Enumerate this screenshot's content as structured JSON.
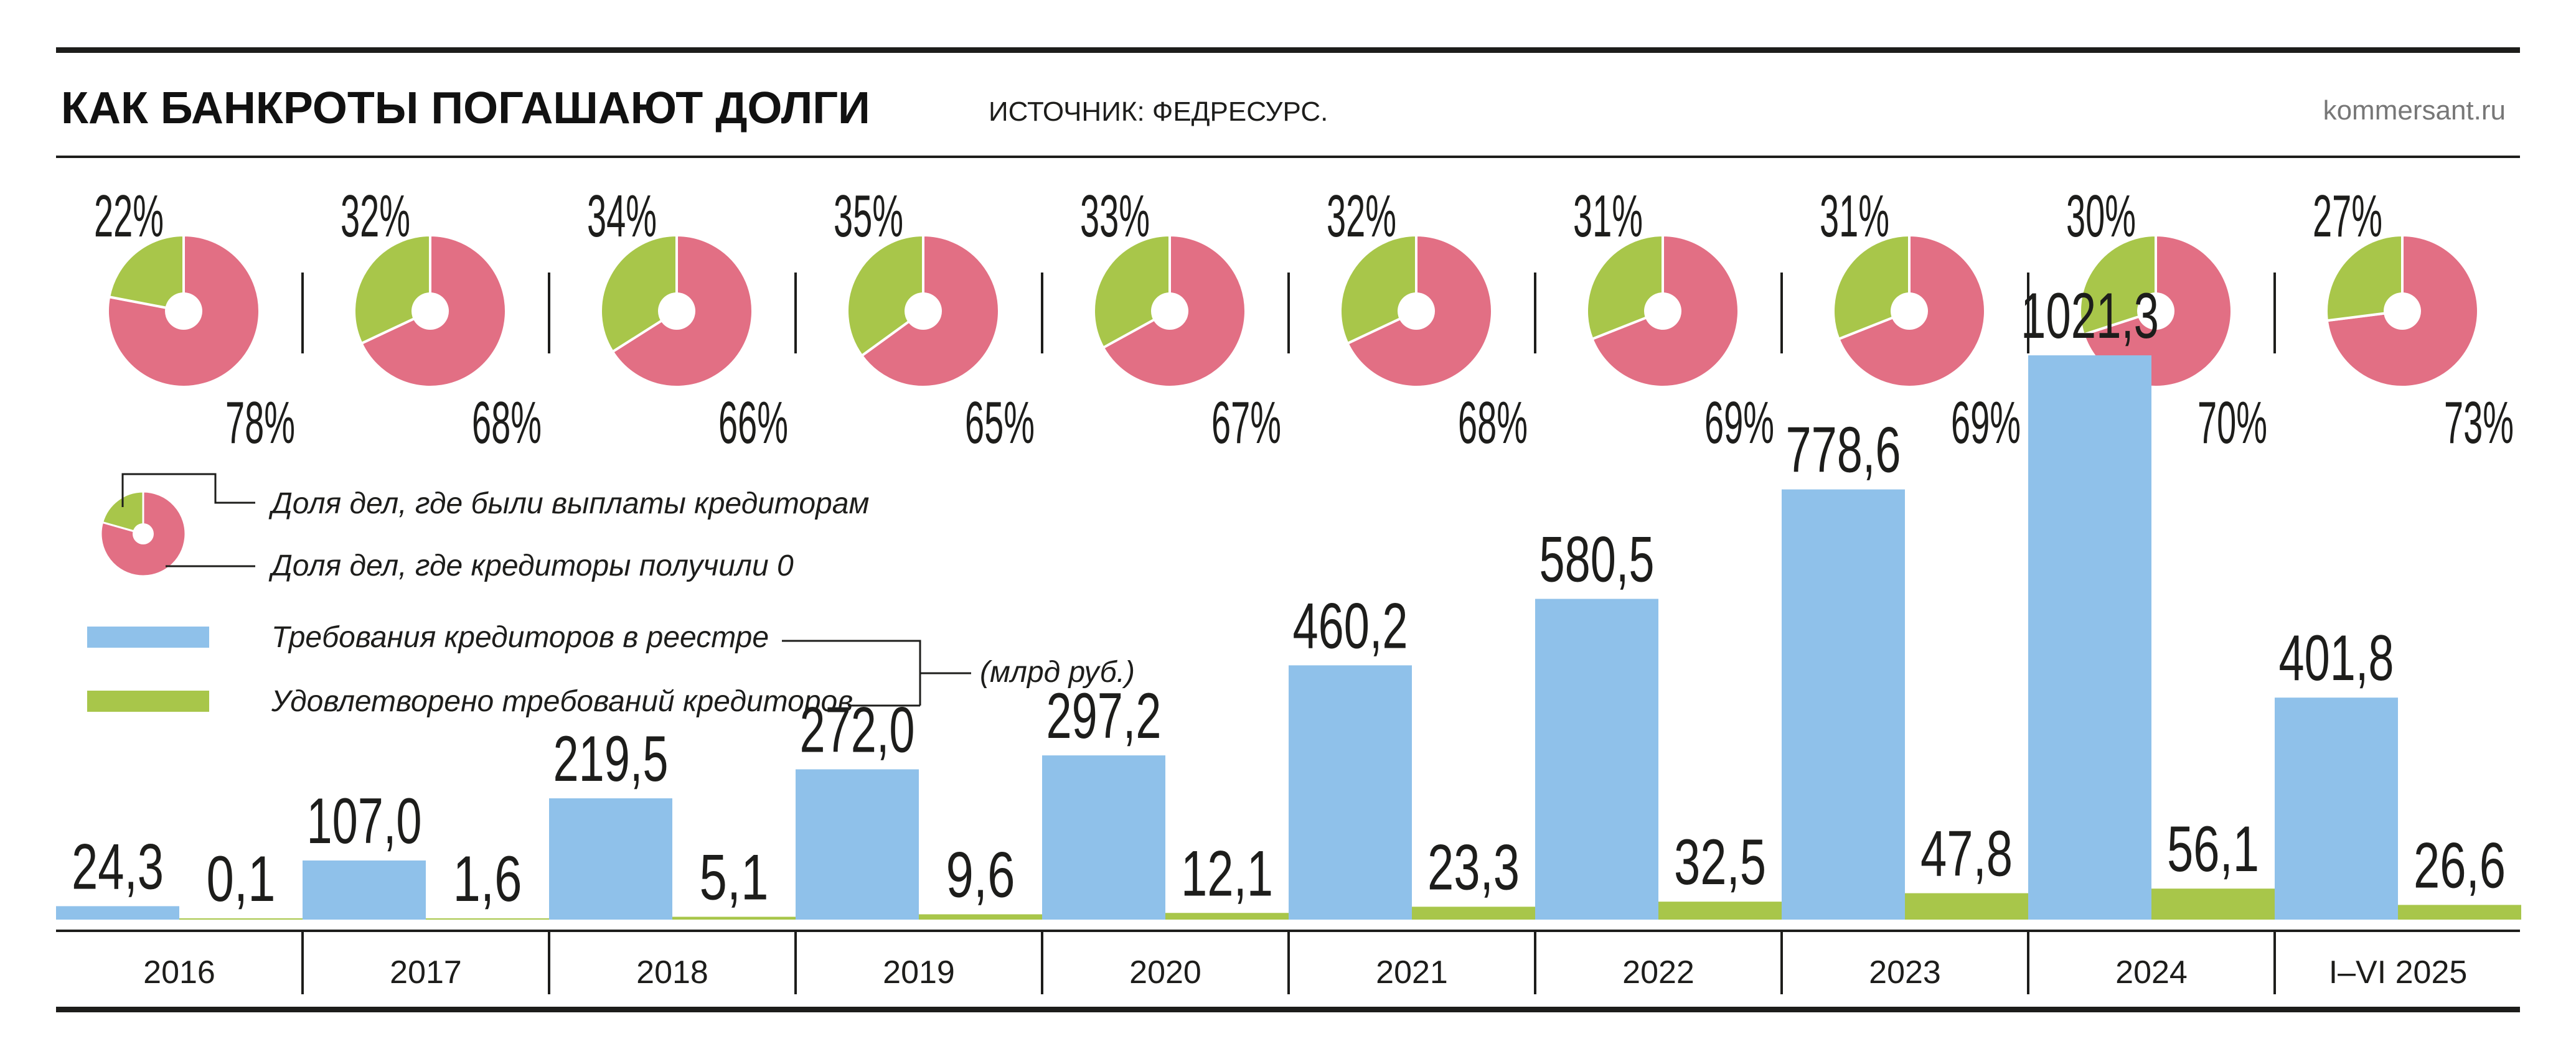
{
  "header": {
    "title": "КАК БАНКРОТЫ ПОГАШАЮТ ДОЛГИ",
    "source": "ИСТОЧНИК: ФЕДРЕСУРС.",
    "site": "kommersant.ru"
  },
  "legend": {
    "pie_paid": "Доля дел, где были выплаты кредиторам",
    "pie_zero": "Доля дел, где кредиторы получили 0",
    "bar_claims": "Требования кредиторов в реестре",
    "bar_satisfied": "Удовлетворено требований кредиторов",
    "unit": "(млрд руб.)"
  },
  "colors": {
    "paid": "#a8c64a",
    "zero": "#e26f84",
    "claims": "#8fc1ea",
    "satisfied": "#a8c64a",
    "rule": "#1d1d1b"
  },
  "chart_data": [
    {
      "type": "pie",
      "categories": [
        "2016",
        "2017",
        "2018",
        "2019",
        "2020",
        "2021",
        "2022",
        "2023",
        "2024",
        "I–VI 2025"
      ],
      "paid_labels": [
        "22%",
        "32%",
        "34%",
        "35%",
        "33%",
        "32%",
        "31%",
        "31%",
        "30%",
        "27%"
      ],
      "zero_labels": [
        "78%",
        "68%",
        "66%",
        "65%",
        "67%",
        "68%",
        "69%",
        "69%",
        "70%",
        "73%"
      ],
      "series": [
        {
          "name": "Доля дел, где были выплаты кредиторам",
          "values": [
            22,
            32,
            34,
            35,
            33,
            32,
            31,
            31,
            30,
            27
          ]
        },
        {
          "name": "Доля дел, где кредиторы получили 0",
          "values": [
            78,
            68,
            66,
            65,
            67,
            68,
            69,
            69,
            70,
            73
          ]
        }
      ]
    },
    {
      "type": "bar",
      "categories": [
        "2016",
        "2017",
        "2018",
        "2019",
        "2020",
        "2021",
        "2022",
        "2023",
        "2024",
        "I–VI 2025"
      ],
      "ylabel": "",
      "series": [
        {
          "name": "Требования кредиторов в реестре",
          "values": [
            24.3,
            107.0,
            219.5,
            272.0,
            297.2,
            460.2,
            580.5,
            778.6,
            1021.3,
            401.8
          ],
          "labels": [
            "24,3",
            "107,0",
            "219,5",
            "272,0",
            "297,2",
            "460,2",
            "580,5",
            "778,6",
            "1021,3",
            "401,8"
          ]
        },
        {
          "name": "Удовлетворено требований кредиторов",
          "values": [
            0.1,
            1.6,
            5.1,
            9.6,
            12.1,
            23.3,
            32.5,
            47.8,
            56.1,
            26.6
          ],
          "labels": [
            "0,1",
            "1,6",
            "5,1",
            "9,6",
            "12,1",
            "23,3",
            "32,5",
            "47,8",
            "56,1",
            "26,6"
          ]
        }
      ]
    }
  ]
}
